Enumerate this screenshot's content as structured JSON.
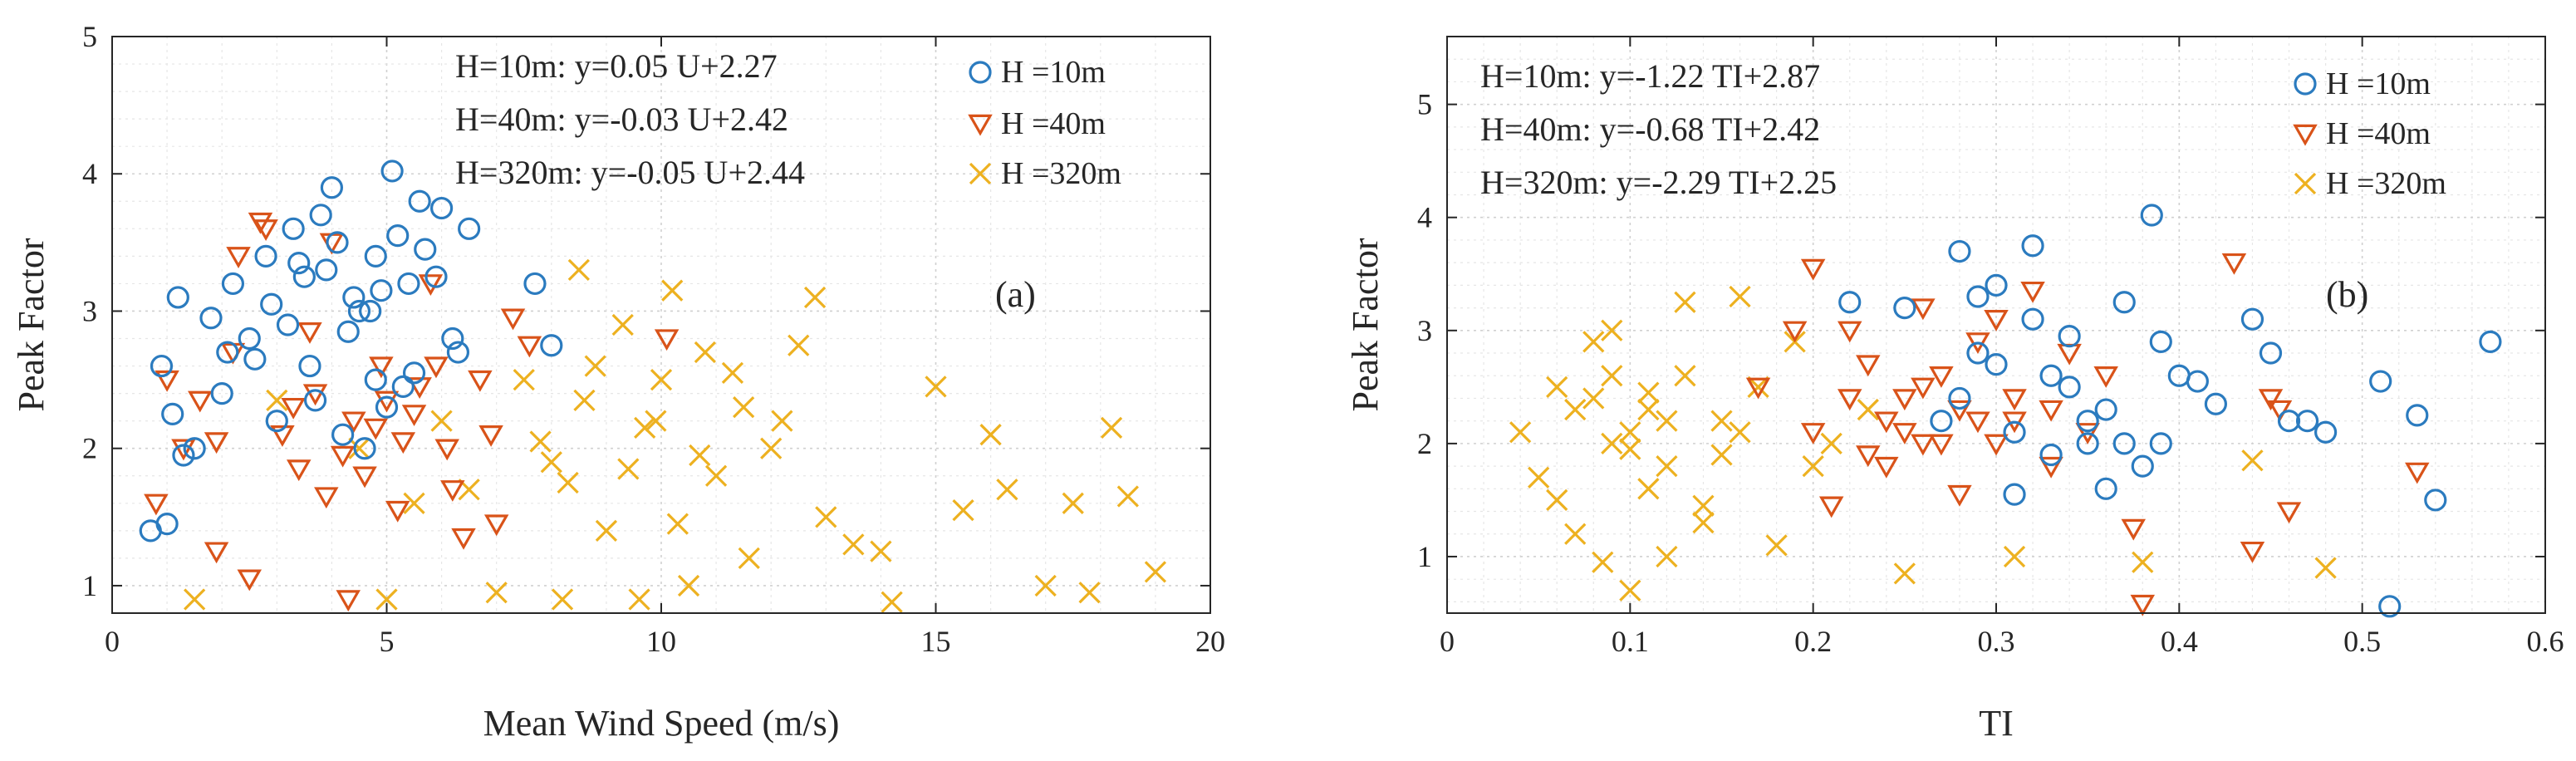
{
  "chart_data": [
    {
      "type": "scatter",
      "panel_label": "(a)",
      "xlabel": "Mean Wind Speed (m/s)",
      "ylabel": "Peak Factor",
      "xlim": [
        0,
        20
      ],
      "ylim": [
        0.8,
        5
      ],
      "xticks": [
        "0",
        "5",
        "10",
        "15",
        "20"
      ],
      "yticks": [
        "1",
        "2",
        "3",
        "4",
        "5"
      ],
      "grid": true,
      "legend_position": "top-right",
      "equations": [
        "H=10m: y=0.05 U+2.27",
        "H=40m: y=-0.03 U+2.42",
        "H=320m: y=-0.05 U+2.44"
      ],
      "series": [
        {
          "name": "H =10m",
          "marker": "circle",
          "color": "#2b7bbf",
          "x": [
            0.7,
            0.9,
            1.0,
            1.2,
            1.5,
            1.8,
            2.0,
            2.2,
            2.5,
            2.8,
            3.0,
            3.3,
            3.6,
            3.9,
            4.2,
            4.5,
            4.8,
            5.1,
            5.4,
            5.7,
            6.0,
            6.3,
            3.2,
            3.8,
            4.4,
            5.0,
            5.6,
            6.2,
            7.7,
            8.0,
            4.1,
            4.6,
            5.2,
            1.1,
            2.6,
            3.4,
            4.3,
            4.9,
            5.3,
            5.9,
            6.5,
            3.7,
            4.7,
            5.5,
            2.9,
            4.0,
            1.3,
            2.1,
            3.5,
            4.8
          ],
          "y": [
            1.4,
            2.6,
            1.45,
            3.1,
            2.0,
            2.95,
            2.4,
            3.2,
            2.8,
            3.4,
            2.2,
            3.6,
            2.6,
            3.3,
            2.1,
            3.0,
            2.5,
            4.02,
            3.2,
            3.45,
            3.75,
            2.7,
            2.9,
            3.7,
            3.1,
            2.3,
            3.8,
            2.8,
            3.2,
            2.75,
            3.5,
            2.0,
            3.55,
            2.25,
            2.65,
            3.35,
            2.85,
            3.15,
            2.45,
            3.25,
            3.6,
            2.35,
            3.0,
            2.55,
            3.05,
            3.9,
            1.95,
            2.7,
            3.25,
            3.4
          ]
        },
        {
          "name": "H =40m",
          "marker": "triangle-down",
          "color": "#d95319",
          "x": [
            0.8,
            1.0,
            1.3,
            1.6,
            1.9,
            2.2,
            2.5,
            2.8,
            3.1,
            3.4,
            3.7,
            4.0,
            4.3,
            4.6,
            4.9,
            5.2,
            5.5,
            5.8,
            6.1,
            6.4,
            6.7,
            7.0,
            7.3,
            7.6,
            2.7,
            4.4,
            10.1,
            1.9,
            3.9,
            5.6,
            6.9,
            2.3,
            3.3,
            4.8,
            5.9,
            3.6,
            4.2,
            5.0,
            5.3,
            6.2
          ],
          "y": [
            1.6,
            2.5,
            2.0,
            2.35,
            1.25,
            2.7,
            1.05,
            3.6,
            2.1,
            1.85,
            2.4,
            3.5,
            0.9,
            1.8,
            2.6,
            1.55,
            2.25,
            3.2,
            2.0,
            1.35,
            2.5,
            1.45,
            2.95,
            2.75,
            3.65,
            2.2,
            2.8,
            2.05,
            1.65,
            2.45,
            2.1,
            3.4,
            2.3,
            2.15,
            2.6,
            2.85,
            1.95,
            2.35,
            2.05,
            1.7
          ]
        },
        {
          "name": "H =320m",
          "marker": "x",
          "color": "#edb120",
          "x": [
            1.5,
            3.0,
            4.5,
            5.0,
            5.5,
            6.0,
            6.5,
            7.0,
            7.5,
            8.0,
            8.2,
            8.5,
            8.8,
            9.0,
            9.3,
            9.6,
            9.9,
            10.2,
            10.5,
            10.8,
            11.0,
            11.3,
            11.6,
            12.0,
            12.5,
            12.8,
            13.0,
            13.5,
            14.0,
            14.2,
            15.0,
            15.5,
            16.0,
            16.3,
            17.0,
            17.5,
            17.8,
            18.2,
            18.5,
            19.0,
            7.8,
            8.6,
            9.4,
            10.0,
            10.7,
            11.5,
            8.3,
            9.7,
            10.3,
            12.2
          ],
          "y": [
            0.9,
            2.35,
            2.0,
            0.9,
            1.6,
            2.2,
            1.7,
            0.95,
            2.5,
            1.9,
            0.9,
            3.3,
            2.6,
            1.4,
            2.9,
            0.9,
            2.2,
            3.15,
            1.0,
            2.7,
            1.8,
            2.55,
            1.2,
            2.0,
            2.75,
            3.1,
            1.5,
            1.3,
            1.25,
            0.88,
            2.45,
            1.55,
            2.1,
            1.7,
            1.0,
            1.6,
            0.95,
            2.15,
            1.65,
            1.1,
            2.05,
            2.35,
            1.85,
            2.5,
            1.95,
            2.3,
            1.75,
            2.15,
            1.45,
            2.2
          ]
        }
      ]
    },
    {
      "type": "scatter",
      "panel_label": "(b)",
      "xlabel": "TI",
      "ylabel": "Peak Factor",
      "xlim": [
        0,
        0.6
      ],
      "ylim": [
        0.5,
        5.6
      ],
      "xticks": [
        "0",
        "0.1",
        "0.2",
        "0.3",
        "0.4",
        "0.5",
        "0.6"
      ],
      "yticks": [
        "1",
        "2",
        "3",
        "4",
        "5"
      ],
      "grid": true,
      "legend_position": "top-right",
      "equations": [
        "H=10m: y=-1.22 TI+2.87",
        "H=40m: y=-0.68 TI+2.42",
        "H=320m: y=-2.29 TI+2.25"
      ],
      "series": [
        {
          "name": "H =10m",
          "marker": "circle",
          "color": "#2b7bbf",
          "x": [
            0.22,
            0.25,
            0.27,
            0.28,
            0.29,
            0.3,
            0.31,
            0.32,
            0.33,
            0.34,
            0.35,
            0.36,
            0.37,
            0.38,
            0.385,
            0.39,
            0.4,
            0.41,
            0.42,
            0.44,
            0.45,
            0.46,
            0.47,
            0.48,
            0.51,
            0.515,
            0.53,
            0.54,
            0.57,
            0.3,
            0.31,
            0.32,
            0.33,
            0.34,
            0.36,
            0.29,
            0.28,
            0.35,
            0.37,
            0.39
          ],
          "y": [
            3.25,
            3.2,
            2.2,
            3.7,
            3.3,
            3.4,
            1.55,
            3.75,
            2.6,
            2.95,
            2.0,
            1.6,
            3.25,
            1.8,
            4.02,
            2.0,
            2.6,
            2.55,
            2.35,
            3.1,
            2.8,
            2.2,
            2.2,
            2.1,
            2.55,
            0.56,
            2.25,
            1.5,
            2.9,
            2.7,
            2.1,
            3.1,
            1.9,
            2.5,
            2.3,
            2.8,
            2.4,
            2.2,
            2.0,
            2.9
          ]
        },
        {
          "name": "H =40m",
          "marker": "triangle-down",
          "color": "#d95319",
          "x": [
            0.17,
            0.19,
            0.2,
            0.21,
            0.22,
            0.23,
            0.24,
            0.25,
            0.26,
            0.27,
            0.28,
            0.29,
            0.3,
            0.31,
            0.32,
            0.33,
            0.34,
            0.35,
            0.36,
            0.375,
            0.38,
            0.43,
            0.44,
            0.45,
            0.455,
            0.46,
            0.53,
            0.2,
            0.24,
            0.26,
            0.28,
            0.3,
            0.22,
            0.25,
            0.27,
            0.29,
            0.23,
            0.26,
            0.31,
            0.33
          ],
          "y": [
            2.5,
            3.0,
            3.55,
            1.45,
            3.0,
            2.7,
            1.8,
            2.4,
            3.2,
            2.0,
            1.55,
            2.9,
            3.1,
            2.2,
            3.35,
            1.8,
            2.8,
            2.1,
            2.6,
            1.25,
            0.58,
            3.6,
            1.05,
            2.4,
            2.3,
            1.4,
            1.75,
            2.1,
            2.2,
            2.5,
            2.3,
            2.0,
            2.4,
            2.1,
            2.6,
            2.2,
            1.9,
            2.0,
            2.4,
            2.3
          ]
        },
        {
          "name": "H =320m",
          "marker": "x",
          "color": "#edb120",
          "x": [
            0.04,
            0.05,
            0.06,
            0.07,
            0.08,
            0.085,
            0.09,
            0.1,
            0.11,
            0.12,
            0.13,
            0.14,
            0.15,
            0.16,
            0.17,
            0.18,
            0.19,
            0.2,
            0.21,
            0.23,
            0.25,
            0.31,
            0.38,
            0.44,
            0.48,
            0.07,
            0.09,
            0.11,
            0.13,
            0.15,
            0.06,
            0.08,
            0.1,
            0.12,
            0.14,
            0.16,
            0.09,
            0.11,
            0.1,
            0.12
          ],
          "y": [
            2.1,
            1.7,
            2.5,
            1.2,
            2.9,
            0.95,
            3.0,
            0.7,
            2.3,
            1.0,
            3.25,
            1.45,
            1.9,
            3.3,
            2.5,
            1.1,
            2.9,
            1.8,
            2.0,
            2.3,
            0.85,
            1.0,
            0.95,
            1.85,
            0.9,
            2.3,
            2.0,
            1.6,
            2.6,
            2.2,
            1.5,
            2.4,
            2.1,
            1.8,
            1.3,
            2.1,
            2.6,
            2.45,
            1.95,
            2.2
          ]
        }
      ]
    }
  ]
}
